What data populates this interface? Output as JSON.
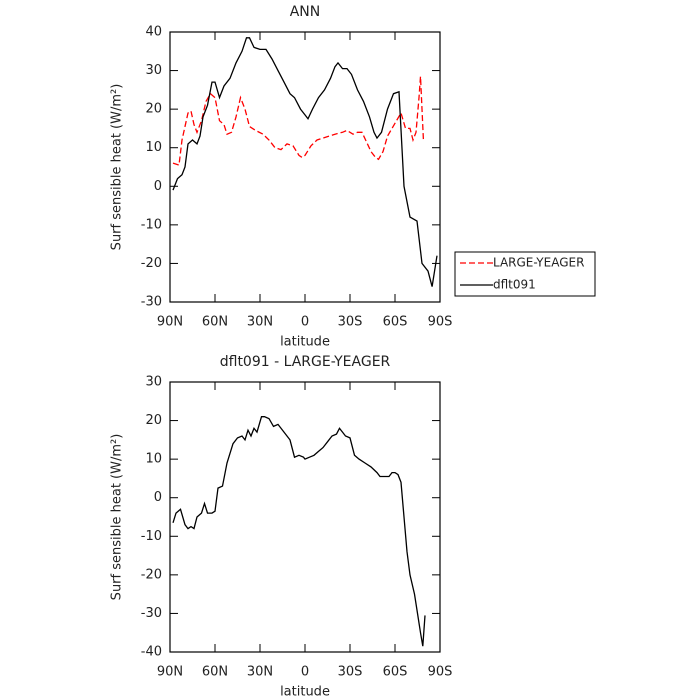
{
  "chart_data": [
    {
      "type": "line",
      "title": "ANN",
      "xlabel": "latitude",
      "ylabel": "Surf sensible heat (W/m²)",
      "xlim": [
        90,
        -90
      ],
      "ylim": [
        -30,
        40
      ],
      "xticks": [
        {
          "value": 90,
          "label": "90N"
        },
        {
          "value": 60,
          "label": "60N"
        },
        {
          "value": 30,
          "label": "30N"
        },
        0,
        {
          "value": -30,
          "label": "30S"
        },
        {
          "value": -60,
          "label": "60S"
        },
        {
          "value": -90,
          "label": "90S"
        }
      ],
      "yticks": [
        -30,
        -20,
        -10,
        0,
        10,
        20,
        30,
        40
      ],
      "legend": "right",
      "series": [
        {
          "name": "LARGE-YEAGER",
          "color": "#ff0000",
          "linestyle": "dashed",
          "x": [
            88,
            84,
            82,
            78,
            76,
            74,
            72,
            69,
            66,
            63,
            60,
            57,
            54,
            52,
            49,
            46,
            43,
            40,
            37,
            33,
            28,
            24,
            20,
            16,
            12,
            8,
            4,
            2,
            0,
            -4,
            -8,
            -12,
            -16,
            -20,
            -25,
            -28,
            -32,
            -35,
            -38,
            -41,
            -44,
            -47,
            -49,
            -52,
            -55,
            -58,
            -61,
            -64,
            -67,
            -70,
            -72,
            -74,
            -76,
            -77,
            -78,
            -79
          ],
          "values": [
            6,
            5.5,
            12,
            19,
            19.5,
            16,
            14,
            17,
            22,
            24,
            23,
            17,
            16,
            13.5,
            14,
            18,
            23,
            20,
            15.5,
            14.5,
            13.5,
            12,
            10,
            9.5,
            11,
            10.5,
            8,
            7.5,
            8,
            10.5,
            12,
            12.5,
            13,
            13.5,
            14,
            14.5,
            13.5,
            14,
            14,
            11.5,
            9,
            7.5,
            7,
            9,
            13,
            15,
            17,
            19,
            15,
            15,
            12,
            14,
            23,
            28.5,
            20,
            11.5
          ]
        },
        {
          "name": "dflt091",
          "color": "#000000",
          "linestyle": "solid",
          "x": [
            88,
            85,
            82,
            80,
            78,
            75,
            72,
            70,
            68,
            65,
            62,
            60,
            57,
            54,
            50,
            46,
            42,
            39,
            37,
            34,
            30,
            26,
            22,
            18,
            14,
            10,
            7,
            3,
            0,
            -2,
            -5,
            -9,
            -13,
            -17,
            -20,
            -22,
            -25,
            -28,
            -31,
            -35,
            -39,
            -43,
            -46,
            -48,
            -51,
            -55,
            -59,
            -62.7,
            -66,
            -70,
            -74.7,
            -78,
            -82,
            -84.7,
            -88
          ],
          "values": [
            -1,
            2,
            3,
            5,
            11,
            12,
            11,
            13,
            18,
            21,
            27,
            27,
            23,
            26,
            28,
            32,
            35,
            38.5,
            38.5,
            36,
            35.5,
            35.5,
            33,
            30,
            27,
            24,
            23,
            20,
            18.5,
            17.5,
            20,
            23,
            25,
            28,
            31,
            32,
            30.5,
            30.5,
            29,
            25,
            22,
            18,
            14,
            12.5,
            14,
            20,
            24,
            24.5,
            0,
            -8,
            -9,
            -20,
            -22,
            -26,
            -18
          ]
        }
      ]
    },
    {
      "type": "line",
      "title": "dflt091 - LARGE-YEAGER",
      "xlabel": "latitude",
      "ylabel": "Surf sensible heat (W/m²)",
      "xlim": [
        90,
        -90
      ],
      "ylim": [
        -40,
        30
      ],
      "xticks": [
        {
          "value": 90,
          "label": "90N"
        },
        {
          "value": 60,
          "label": "60N"
        },
        {
          "value": 30,
          "label": "30N"
        },
        0,
        {
          "value": -30,
          "label": "30S"
        },
        {
          "value": -60,
          "label": "60S"
        },
        {
          "value": -90,
          "label": "90S"
        }
      ],
      "yticks": [
        -40,
        -30,
        -20,
        -10,
        0,
        10,
        20,
        30
      ],
      "color": "#000000",
      "x": [
        88,
        86,
        83,
        80,
        78,
        76,
        74,
        72,
        69,
        67,
        65,
        62,
        60,
        58,
        55,
        52,
        48,
        45,
        42,
        40,
        38,
        36,
        34,
        32,
        29,
        27,
        24,
        21,
        18,
        14,
        10,
        7,
        4,
        1,
        0,
        -3,
        -6,
        -9,
        -12,
        -15,
        -18,
        -21,
        -23,
        -25,
        -27,
        -30,
        -33,
        -36,
        -40,
        -44,
        -48,
        -50,
        -54,
        -56,
        -58,
        -60,
        -62,
        -64,
        -66,
        -68,
        -70,
        -73,
        -75,
        -77,
        -78.5,
        -80
      ],
      "values": [
        -6.5,
        -4,
        -3,
        -7,
        -8,
        -7.5,
        -8,
        -5,
        -4,
        -1.5,
        -4,
        -4,
        -3.5,
        2.5,
        3,
        9,
        14,
        15.5,
        16,
        15,
        17.5,
        16,
        18,
        17,
        21,
        21,
        20.5,
        18.5,
        19,
        17,
        15,
        10.5,
        11,
        10.5,
        10,
        10.5,
        11,
        12,
        13,
        14.5,
        16,
        16.5,
        18,
        17,
        16,
        15.5,
        11,
        10,
        9,
        8,
        6.5,
        5.5,
        5.5,
        5.5,
        6.5,
        6.5,
        6,
        4,
        -5,
        -14,
        -20,
        -25,
        -30,
        -35,
        -38.5,
        -30.5
      ]
    }
  ]
}
